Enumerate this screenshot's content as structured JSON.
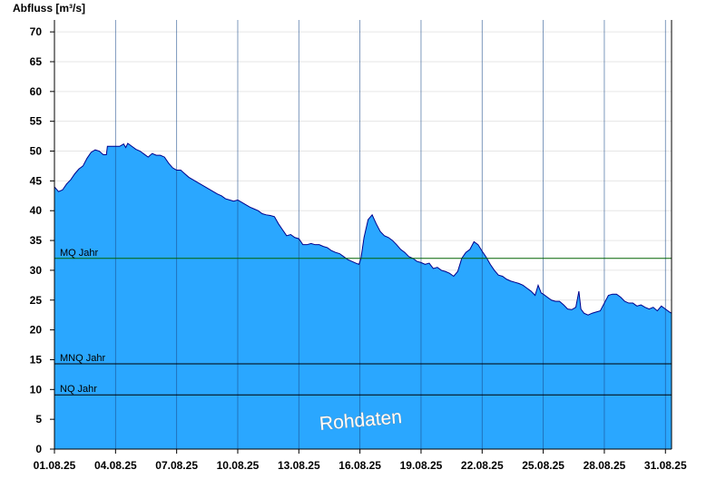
{
  "chart_data": {
    "type": "area",
    "ylabel": "Abfluss [m³/s]",
    "ylim": [
      0,
      72
    ],
    "yticks": [
      0,
      5,
      10,
      15,
      20,
      25,
      30,
      35,
      40,
      45,
      50,
      55,
      60,
      65,
      70
    ],
    "xlim": [
      1,
      31.3
    ],
    "xticks": [
      {
        "x": 1,
        "label": "01.08.25"
      },
      {
        "x": 4,
        "label": "04.08.25"
      },
      {
        "x": 7,
        "label": "07.08.25"
      },
      {
        "x": 10,
        "label": "10.08.25"
      },
      {
        "x": 13,
        "label": "13.08.25"
      },
      {
        "x": 16,
        "label": "16.08.25"
      },
      {
        "x": 19,
        "label": "19.08.25"
      },
      {
        "x": 22,
        "label": "22.08.25"
      },
      {
        "x": 25,
        "label": "25.08.25"
      },
      {
        "x": 28,
        "label": "28.08.25"
      },
      {
        "x": 31,
        "label": "31.08.25"
      }
    ],
    "grid": {
      "horizontal": true,
      "vertical": true
    },
    "series": [
      {
        "fill_color": "#2aa7ff",
        "line_color": "#00008b",
        "points": [
          [
            1.0,
            44.0
          ],
          [
            1.2,
            43.2
          ],
          [
            1.4,
            43.5
          ],
          [
            1.6,
            44.5
          ],
          [
            1.8,
            45.2
          ],
          [
            2.0,
            46.2
          ],
          [
            2.2,
            47.0
          ],
          [
            2.4,
            47.5
          ],
          [
            2.6,
            48.8
          ],
          [
            2.8,
            49.8
          ],
          [
            3.0,
            50.2
          ],
          [
            3.2,
            50.0
          ],
          [
            3.4,
            49.4
          ],
          [
            3.55,
            49.4
          ],
          [
            3.6,
            50.8
          ],
          [
            3.8,
            50.8
          ],
          [
            4.0,
            50.8
          ],
          [
            4.2,
            50.8
          ],
          [
            4.4,
            51.2
          ],
          [
            4.5,
            50.6
          ],
          [
            4.6,
            51.3
          ],
          [
            4.8,
            50.8
          ],
          [
            5.0,
            50.3
          ],
          [
            5.2,
            50.0
          ],
          [
            5.4,
            49.5
          ],
          [
            5.6,
            49.0
          ],
          [
            5.8,
            49.6
          ],
          [
            6.0,
            49.3
          ],
          [
            6.2,
            49.3
          ],
          [
            6.4,
            49.0
          ],
          [
            6.6,
            48.0
          ],
          [
            6.8,
            47.2
          ],
          [
            7.0,
            46.8
          ],
          [
            7.2,
            46.8
          ],
          [
            7.4,
            46.2
          ],
          [
            7.6,
            45.6
          ],
          [
            7.8,
            45.2
          ],
          [
            8.0,
            44.8
          ],
          [
            8.2,
            44.4
          ],
          [
            8.4,
            44.0
          ],
          [
            8.6,
            43.6
          ],
          [
            8.8,
            43.2
          ],
          [
            9.0,
            42.8
          ],
          [
            9.2,
            42.5
          ],
          [
            9.4,
            42.0
          ],
          [
            9.6,
            41.8
          ],
          [
            9.8,
            41.6
          ],
          [
            10.0,
            41.8
          ],
          [
            10.2,
            41.4
          ],
          [
            10.4,
            41.0
          ],
          [
            10.6,
            40.6
          ],
          [
            10.8,
            40.3
          ],
          [
            11.0,
            40.0
          ],
          [
            11.2,
            39.5
          ],
          [
            11.4,
            39.3
          ],
          [
            11.6,
            39.2
          ],
          [
            11.8,
            39.0
          ],
          [
            12.0,
            37.8
          ],
          [
            12.2,
            36.8
          ],
          [
            12.4,
            35.8
          ],
          [
            12.6,
            36.0
          ],
          [
            12.8,
            35.5
          ],
          [
            13.0,
            35.3
          ],
          [
            13.2,
            34.3
          ],
          [
            13.4,
            34.3
          ],
          [
            13.6,
            34.5
          ],
          [
            13.8,
            34.3
          ],
          [
            14.0,
            34.3
          ],
          [
            14.2,
            34.0
          ],
          [
            14.4,
            33.8
          ],
          [
            14.6,
            33.3
          ],
          [
            14.8,
            33.0
          ],
          [
            15.0,
            32.8
          ],
          [
            15.2,
            32.3
          ],
          [
            15.4,
            31.8
          ],
          [
            15.6,
            31.5
          ],
          [
            15.8,
            31.2
          ],
          [
            15.95,
            31.0
          ],
          [
            16.05,
            32.0
          ],
          [
            16.2,
            35.5
          ],
          [
            16.4,
            38.5
          ],
          [
            16.6,
            39.3
          ],
          [
            16.8,
            37.8
          ],
          [
            17.0,
            36.5
          ],
          [
            17.2,
            35.8
          ],
          [
            17.4,
            35.5
          ],
          [
            17.6,
            35.0
          ],
          [
            17.8,
            34.3
          ],
          [
            18.0,
            33.5
          ],
          [
            18.2,
            33.0
          ],
          [
            18.4,
            32.3
          ],
          [
            18.6,
            32.0
          ],
          [
            18.8,
            31.5
          ],
          [
            19.0,
            31.3
          ],
          [
            19.2,
            31.0
          ],
          [
            19.4,
            31.2
          ],
          [
            19.6,
            30.3
          ],
          [
            19.8,
            30.5
          ],
          [
            20.0,
            30.0
          ],
          [
            20.2,
            29.8
          ],
          [
            20.4,
            29.5
          ],
          [
            20.6,
            29.0
          ],
          [
            20.8,
            29.8
          ],
          [
            21.0,
            32.0
          ],
          [
            21.2,
            33.0
          ],
          [
            21.4,
            33.5
          ],
          [
            21.6,
            34.8
          ],
          [
            21.8,
            34.3
          ],
          [
            22.0,
            33.2
          ],
          [
            22.2,
            32.2
          ],
          [
            22.4,
            31.0
          ],
          [
            22.6,
            30.0
          ],
          [
            22.8,
            29.2
          ],
          [
            23.0,
            29.0
          ],
          [
            23.2,
            28.5
          ],
          [
            23.4,
            28.2
          ],
          [
            23.6,
            28.0
          ],
          [
            23.8,
            27.8
          ],
          [
            24.0,
            27.5
          ],
          [
            24.2,
            27.0
          ],
          [
            24.4,
            26.5
          ],
          [
            24.6,
            25.8
          ],
          [
            24.75,
            27.5
          ],
          [
            24.9,
            26.2
          ],
          [
            25.0,
            26.0
          ],
          [
            25.2,
            25.5
          ],
          [
            25.4,
            25.0
          ],
          [
            25.6,
            24.8
          ],
          [
            25.8,
            24.8
          ],
          [
            26.0,
            24.2
          ],
          [
            26.2,
            23.5
          ],
          [
            26.4,
            23.4
          ],
          [
            26.6,
            23.8
          ],
          [
            26.75,
            26.5
          ],
          [
            26.85,
            23.5
          ],
          [
            27.0,
            22.8
          ],
          [
            27.2,
            22.5
          ],
          [
            27.4,
            22.8
          ],
          [
            27.6,
            23.0
          ],
          [
            27.8,
            23.2
          ],
          [
            28.0,
            24.5
          ],
          [
            28.2,
            25.8
          ],
          [
            28.4,
            26.0
          ],
          [
            28.6,
            26.0
          ],
          [
            28.8,
            25.5
          ],
          [
            29.0,
            24.8
          ],
          [
            29.2,
            24.5
          ],
          [
            29.4,
            24.5
          ],
          [
            29.6,
            24.0
          ],
          [
            29.8,
            24.2
          ],
          [
            30.0,
            23.8
          ],
          [
            30.2,
            23.5
          ],
          [
            30.4,
            23.8
          ],
          [
            30.6,
            23.2
          ],
          [
            30.8,
            24.0
          ],
          [
            31.0,
            23.5
          ],
          [
            31.2,
            23.0
          ],
          [
            31.3,
            22.8
          ]
        ]
      }
    ],
    "reference_lines": [
      {
        "label": "MQ Jahr",
        "value": 32.0,
        "color": "#006400"
      },
      {
        "label": "MNQ Jahr",
        "value": 14.3,
        "color": "#000000"
      },
      {
        "label": "NQ Jahr",
        "value": 9.1,
        "color": "#000000"
      }
    ],
    "annotations": [
      "Rohdaten"
    ]
  }
}
